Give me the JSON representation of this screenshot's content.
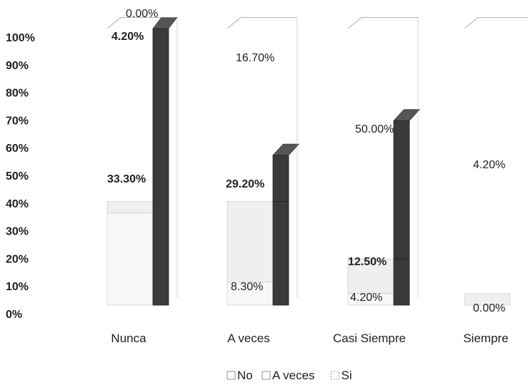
{
  "chart_data": {
    "type": "bar",
    "stacked": true,
    "style": "3d-stacked-percent",
    "categories": [
      "Nunca",
      "A veces",
      "Casi Siempre",
      "Siempre"
    ],
    "series": [
      {
        "name": "No",
        "values": [
          33.3,
          8.3,
          4.2,
          0.0
        ],
        "labels": [
          "33.30%",
          "8.30%",
          "4.20%",
          "0.00%"
        ],
        "color": "#e8e8e8"
      },
      {
        "name": "A veces",
        "values": [
          4.2,
          29.2,
          12.5,
          4.2
        ],
        "labels": [
          "4.20%",
          "29.20%",
          "12.50%",
          "4.20%"
        ],
        "color": "#d0d0d0"
      },
      {
        "name": "Si",
        "values": [
          0.0,
          16.7,
          50.0,
          0.0
        ],
        "labels": [
          "0.00%",
          "16.70%",
          "50.00%",
          ""
        ],
        "color": "#3a3a3a"
      }
    ],
    "ylim": [
      0,
      100
    ],
    "yticks": [
      "0%",
      "10%",
      "20%",
      "30%",
      "40%",
      "50%",
      "60%",
      "70%",
      "80%",
      "90%",
      "100%"
    ],
    "legend": {
      "position": "bottom",
      "items": [
        "No",
        "A veces",
        "Si"
      ]
    },
    "grid": false
  }
}
